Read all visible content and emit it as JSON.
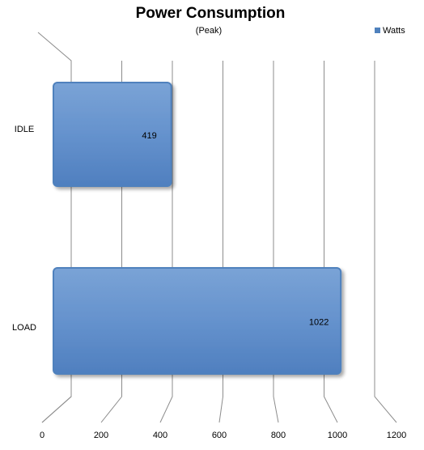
{
  "chart_data": {
    "type": "bar",
    "orientation": "horizontal",
    "title": "Power Consumption",
    "subtitle": "(Peak)",
    "categories": [
      "IDLE",
      "LOAD"
    ],
    "series": [
      {
        "name": "Watts",
        "color": "#4f81bd",
        "values": [
          419,
          1022
        ]
      }
    ],
    "xlim": [
      0,
      1200
    ],
    "xticks": [
      0,
      200,
      400,
      600,
      800,
      1000,
      1200
    ],
    "grid": true,
    "legend": "top-right"
  }
}
